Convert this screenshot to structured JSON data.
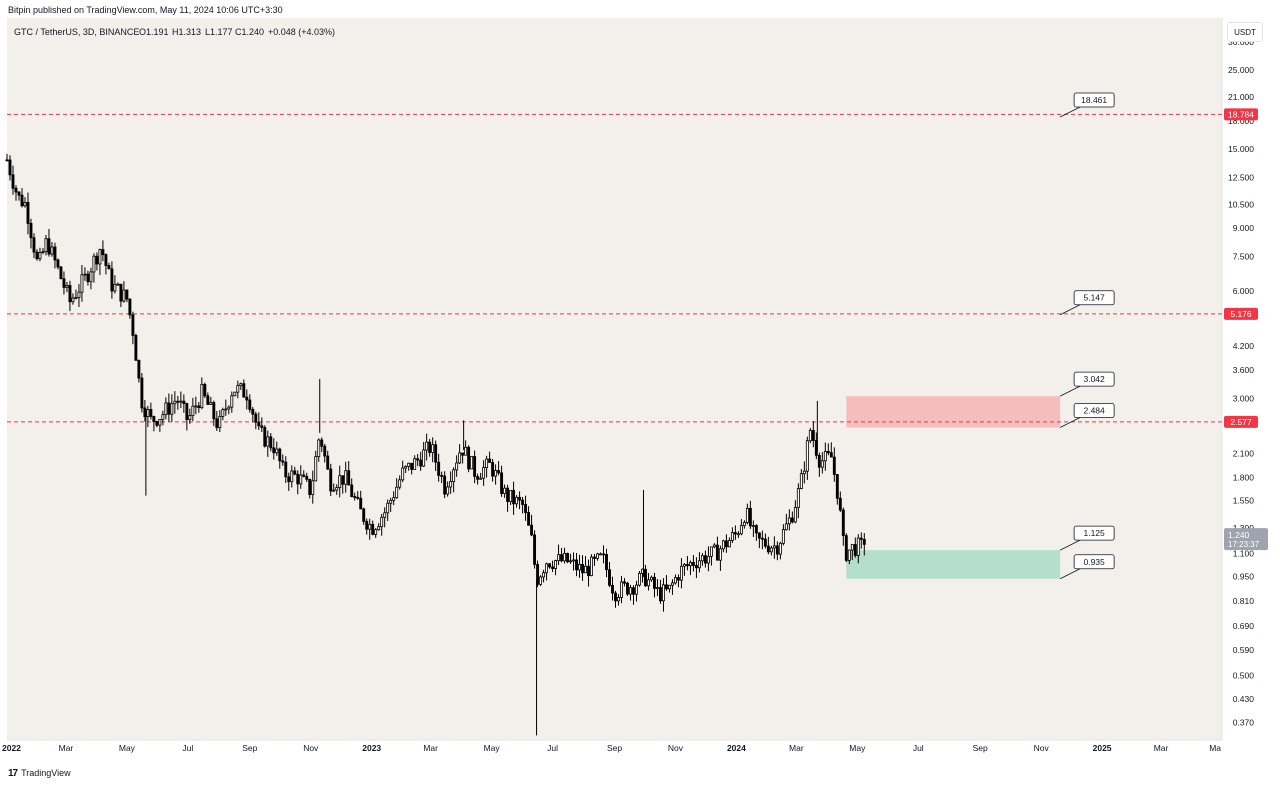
{
  "header": {
    "publish_text": "Bitpin published on TradingView.com, May 11, 2024 10:06 UTC+3:30"
  },
  "footer": {
    "logo_glyph": "17",
    "brand": "TradingView"
  },
  "colors": {
    "background": "#f3efeb",
    "candle": "#000000",
    "level_line": "#f23645",
    "resistance_zone": "#f5b5b5",
    "support_zone": "#a8dcc8",
    "last_price_badge": "#9ea3ad"
  },
  "chart_data": {
    "type": "candlestick",
    "symbol_info": "GTC / TetherUS, 3D, BINANCE",
    "ohlc": {
      "o": "O1.191",
      "h": "H1.313",
      "l": "L1.177",
      "c": "C1.240",
      "chg": "+0.048 (+4.03%)"
    },
    "unit": "USDT",
    "y_scale": "log",
    "ylim": [
      0.33,
      35
    ],
    "xlim": [
      "2022-01-01",
      "2025-05-01"
    ],
    "y_ticks": [
      30.0,
      25.0,
      21.0,
      18.0,
      15.0,
      12.5,
      10.5,
      9.0,
      7.5,
      6.0,
      4.2,
      3.6,
      3.0,
      2.1,
      1.8,
      1.55,
      1.3,
      1.1,
      0.95,
      0.81,
      0.69,
      0.59,
      0.5,
      0.43,
      0.37
    ],
    "y_tick_labels": [
      "30.000",
      "25.000",
      "21.000",
      "18.000",
      "15.000",
      "12.500",
      "10.500",
      "9.000",
      "7.500",
      "6.000",
      "4.200",
      "3.600",
      "3.000",
      "2.100",
      "1.800",
      "1.550",
      "1.300",
      "1.100",
      "0.950",
      "0.810",
      "0.690",
      "0.590",
      "0.500",
      "0.430",
      "0.370"
    ],
    "x_ticks": [
      {
        "label": "2022",
        "date": "2022-01-01",
        "bold": true
      },
      {
        "label": "Mar",
        "date": "2022-03-01",
        "bold": false
      },
      {
        "label": "May",
        "date": "2022-05-01",
        "bold": false
      },
      {
        "label": "Jul",
        "date": "2022-07-01",
        "bold": false
      },
      {
        "label": "Sep",
        "date": "2022-09-01",
        "bold": false
      },
      {
        "label": "Nov",
        "date": "2022-11-01",
        "bold": false
      },
      {
        "label": "2023",
        "date": "2023-01-01",
        "bold": true
      },
      {
        "label": "Mar",
        "date": "2023-03-01",
        "bold": false
      },
      {
        "label": "May",
        "date": "2023-05-01",
        "bold": false
      },
      {
        "label": "Jul",
        "date": "2023-07-01",
        "bold": false
      },
      {
        "label": "Sep",
        "date": "2023-09-01",
        "bold": false
      },
      {
        "label": "Nov",
        "date": "2023-11-01",
        "bold": false
      },
      {
        "label": "2024",
        "date": "2024-01-01",
        "bold": true
      },
      {
        "label": "Mar",
        "date": "2024-03-01",
        "bold": false
      },
      {
        "label": "May",
        "date": "2024-05-01",
        "bold": false
      },
      {
        "label": "Jul",
        "date": "2024-07-01",
        "bold": false
      },
      {
        "label": "Sep",
        "date": "2024-09-01",
        "bold": false
      },
      {
        "label": "Nov",
        "date": "2024-11-01",
        "bold": false
      },
      {
        "label": "2025",
        "date": "2025-01-01",
        "bold": true
      },
      {
        "label": "Mar",
        "date": "2025-03-01",
        "bold": false
      },
      {
        "label": "Ma",
        "date": "2025-05-01",
        "bold": false
      }
    ],
    "price_path": [
      [
        "2022-01-01",
        14.0
      ],
      [
        "2022-01-12",
        11.0
      ],
      [
        "2022-01-20",
        10.5
      ],
      [
        "2022-02-01",
        7.0
      ],
      [
        "2022-02-10",
        8.3
      ],
      [
        "2022-02-20",
        7.0
      ],
      [
        "2022-03-05",
        5.6
      ],
      [
        "2022-03-20",
        6.5
      ],
      [
        "2022-04-05",
        8.0
      ],
      [
        "2022-04-15",
        6.3
      ],
      [
        "2022-05-01",
        5.7
      ],
      [
        "2022-05-08",
        4.5
      ],
      [
        "2022-05-15",
        3.0
      ],
      [
        "2022-05-25",
        2.6
      ],
      [
        "2022-06-05",
        2.7
      ],
      [
        "2022-06-20",
        3.0
      ],
      [
        "2022-07-01",
        2.6
      ],
      [
        "2022-07-15",
        3.1
      ],
      [
        "2022-08-01",
        2.5
      ],
      [
        "2022-08-15",
        3.2
      ],
      [
        "2022-08-30",
        3.1
      ],
      [
        "2022-09-10",
        2.4
      ],
      [
        "2022-09-25",
        2.2
      ],
      [
        "2022-10-05",
        1.85
      ],
      [
        "2022-10-20",
        1.8
      ],
      [
        "2022-11-01",
        1.65
      ],
      [
        "2022-11-10",
        2.4
      ],
      [
        "2022-11-20",
        1.75
      ],
      [
        "2022-12-05",
        1.8
      ],
      [
        "2022-12-20",
        1.45
      ],
      [
        "2023-01-01",
        1.3
      ],
      [
        "2023-01-15",
        1.45
      ],
      [
        "2023-02-01",
        1.85
      ],
      [
        "2023-02-15",
        2.0
      ],
      [
        "2023-03-01",
        2.2
      ],
      [
        "2023-03-15",
        1.7
      ],
      [
        "2023-04-01",
        2.2
      ],
      [
        "2023-04-15",
        1.85
      ],
      [
        "2023-04-30",
        1.95
      ],
      [
        "2023-05-15",
        1.6
      ],
      [
        "2023-06-01",
        1.5
      ],
      [
        "2023-06-10",
        1.2
      ],
      [
        "2023-06-15",
        0.93
      ],
      [
        "2023-06-25",
        1.05
      ],
      [
        "2023-07-15",
        1.05
      ],
      [
        "2023-08-01",
        0.98
      ],
      [
        "2023-08-20",
        1.07
      ],
      [
        "2023-09-01",
        0.86
      ],
      [
        "2023-09-20",
        0.9
      ],
      [
        "2023-10-01",
        0.95
      ],
      [
        "2023-10-15",
        0.85
      ],
      [
        "2023-10-25",
        0.86
      ],
      [
        "2023-11-05",
        0.98
      ],
      [
        "2023-11-20",
        1.05
      ],
      [
        "2023-12-10",
        1.1
      ],
      [
        "2023-12-25",
        1.2
      ],
      [
        "2024-01-01",
        1.25
      ],
      [
        "2024-01-10",
        1.45
      ],
      [
        "2024-01-20",
        1.2
      ],
      [
        "2024-02-10",
        1.15
      ],
      [
        "2024-02-25",
        1.4
      ],
      [
        "2024-03-05",
        1.7
      ],
      [
        "2024-03-15",
        2.45
      ],
      [
        "2024-03-25",
        2.0
      ],
      [
        "2024-04-05",
        2.05
      ],
      [
        "2024-04-12",
        1.6
      ],
      [
        "2024-04-18",
        1.1
      ],
      [
        "2024-04-28",
        1.15
      ],
      [
        "2024-05-05",
        1.15
      ],
      [
        "2024-05-10",
        1.24
      ]
    ],
    "spikes": [
      {
        "date": "2022-05-20",
        "low": 1.6
      },
      {
        "date": "2022-11-10",
        "high": 3.4
      },
      {
        "date": "2023-04-03",
        "high": 2.6
      },
      {
        "date": "2023-06-15",
        "low": 0.34
      },
      {
        "date": "2023-09-30",
        "high": 1.66
      },
      {
        "date": "2024-03-22",
        "high": 2.95
      }
    ],
    "levels": [
      {
        "value": 18.784,
        "label": "18.784"
      },
      {
        "value": 5.176,
        "label": "5.176"
      },
      {
        "value": 2.577,
        "label": "2.577"
      }
    ],
    "zones": [
      {
        "type": "resistance",
        "from_date": "2024-04-20",
        "to_date": "2024-11-20",
        "low": 2.484,
        "high": 3.042
      },
      {
        "type": "support",
        "from_date": "2024-04-20",
        "to_date": "2024-11-20",
        "low": 0.935,
        "high": 1.125
      }
    ],
    "callouts": [
      {
        "label": "18.461",
        "date": "2024-11-20",
        "value": 18.461
      },
      {
        "label": "5.147",
        "date": "2024-11-20",
        "value": 5.147
      },
      {
        "label": "3.042",
        "date": "2024-11-20",
        "value": 3.042
      },
      {
        "label": "2.484",
        "date": "2024-11-20",
        "value": 2.484
      },
      {
        "label": "1.125",
        "date": "2024-11-20",
        "value": 1.125
      },
      {
        "label": "0.935",
        "date": "2024-11-20",
        "value": 0.935
      }
    ],
    "last_price": {
      "value": 1.24,
      "label": "1.240",
      "countdown": "17:23:37"
    }
  }
}
